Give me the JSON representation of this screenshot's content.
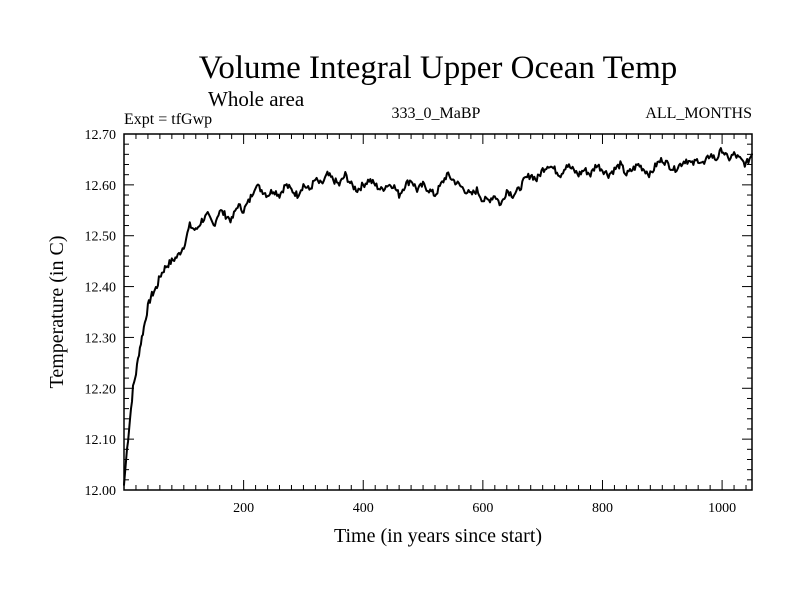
{
  "chart_data": {
    "type": "line",
    "title": "Volume Integral Upper Ocean Temp",
    "subtitle": "Whole area",
    "experiment_label": "Expt = tfGwp",
    "run_label": "333_0_MaBP",
    "period_label": "ALL_MONTHS",
    "xlabel": "Time (in years since start)",
    "ylabel": "Temperature (in C)",
    "xlim": [
      0,
      1050
    ],
    "ylim": [
      12.0,
      12.7
    ],
    "x_ticks": [
      200,
      400,
      600,
      800,
      1000
    ],
    "x_tick_labels": [
      "200",
      "400",
      "600",
      "800",
      "1000"
    ],
    "y_ticks": [
      12.0,
      12.1,
      12.2,
      12.3,
      12.4,
      12.5,
      12.6,
      12.7
    ],
    "y_tick_labels": [
      "12.00",
      "12.10",
      "12.20",
      "12.30",
      "12.40",
      "12.50",
      "12.60",
      "12.70"
    ],
    "grid": false,
    "legend": "none",
    "series": [
      {
        "name": "Upper Ocean Temp",
        "color": "#000000",
        "x": [
          0,
          5,
          10,
          15,
          20,
          25,
          30,
          35,
          40,
          45,
          50,
          55,
          60,
          65,
          70,
          80,
          90,
          100,
          110,
          120,
          130,
          140,
          150,
          160,
          170,
          180,
          190,
          200,
          210,
          220,
          230,
          240,
          250,
          260,
          270,
          280,
          290,
          300,
          310,
          320,
          330,
          340,
          350,
          360,
          370,
          380,
          390,
          400,
          410,
          420,
          430,
          440,
          450,
          460,
          470,
          480,
          490,
          500,
          510,
          520,
          530,
          540,
          550,
          560,
          570,
          580,
          590,
          600,
          610,
          620,
          630,
          640,
          650,
          660,
          670,
          680,
          690,
          700,
          710,
          720,
          730,
          740,
          750,
          760,
          770,
          780,
          790,
          800,
          810,
          820,
          830,
          840,
          850,
          860,
          870,
          880,
          890,
          900,
          910,
          920,
          930,
          940,
          950,
          960,
          970,
          980,
          990,
          1000,
          1010,
          1020,
          1030,
          1040,
          1050
        ],
        "y": [
          12.01,
          12.08,
          12.14,
          12.2,
          12.23,
          12.27,
          12.3,
          12.33,
          12.36,
          12.38,
          12.39,
          12.4,
          12.42,
          12.43,
          12.44,
          12.45,
          12.46,
          12.48,
          12.52,
          12.51,
          12.53,
          12.54,
          12.52,
          12.55,
          12.54,
          12.53,
          12.56,
          12.55,
          12.57,
          12.6,
          12.59,
          12.58,
          12.59,
          12.58,
          12.6,
          12.59,
          12.58,
          12.6,
          12.59,
          12.61,
          12.6,
          12.62,
          12.61,
          12.6,
          12.62,
          12.6,
          12.59,
          12.6,
          12.61,
          12.6,
          12.59,
          12.6,
          12.6,
          12.58,
          12.6,
          12.61,
          12.59,
          12.6,
          12.59,
          12.58,
          12.6,
          12.62,
          12.61,
          12.6,
          12.59,
          12.58,
          12.59,
          12.57,
          12.57,
          12.58,
          12.56,
          12.59,
          12.58,
          12.59,
          12.61,
          12.62,
          12.61,
          12.63,
          12.64,
          12.63,
          12.62,
          12.64,
          12.63,
          12.62,
          12.63,
          12.62,
          12.64,
          12.63,
          12.62,
          12.63,
          12.64,
          12.62,
          12.63,
          12.64,
          12.63,
          12.62,
          12.64,
          12.65,
          12.64,
          12.63,
          12.64,
          12.65,
          12.64,
          12.65,
          12.64,
          12.66,
          12.65,
          12.67,
          12.65,
          12.66,
          12.65,
          12.64,
          12.66
        ]
      }
    ]
  }
}
